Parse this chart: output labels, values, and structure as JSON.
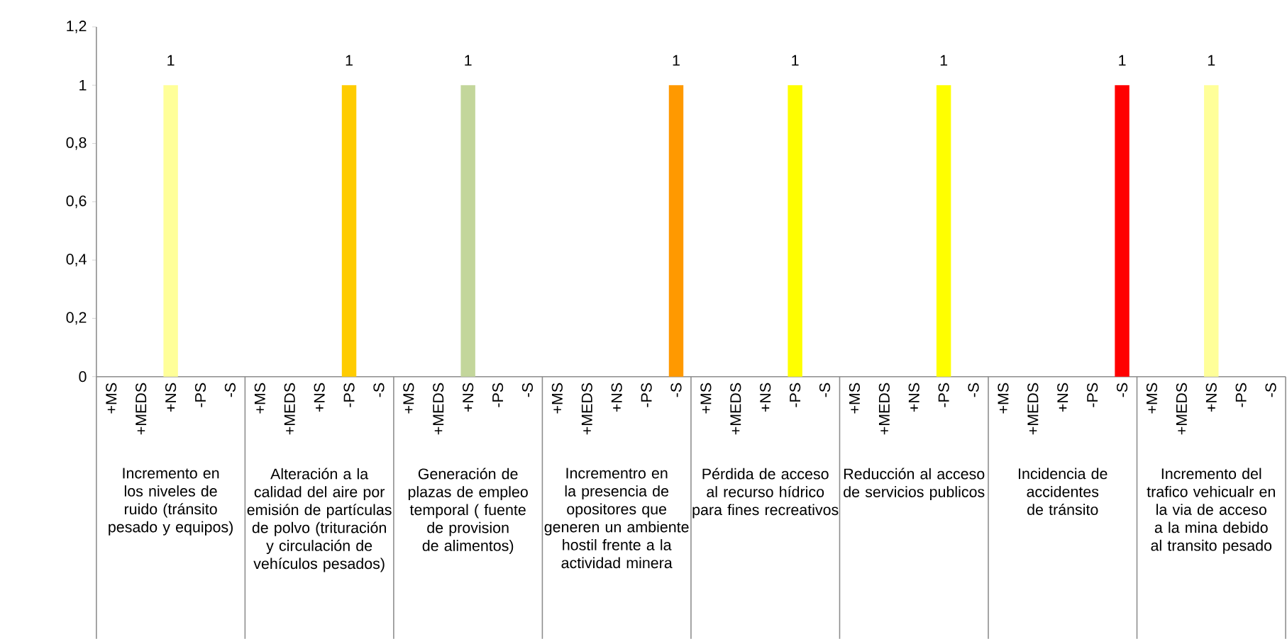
{
  "chart_data": {
    "type": "bar",
    "categories": [
      "+MS",
      "+MEDS",
      "+NS",
      "-PS",
      "-S",
      "+MS",
      "+MEDS",
      "+NS",
      "-PS",
      "-S",
      "+MS",
      "+MEDS",
      "+NS",
      "-PS",
      "-S",
      "+MS",
      "+MEDS",
      "+NS",
      "-PS",
      "-S",
      "+MS",
      "+MEDS",
      "+NS",
      "-PS",
      "-S",
      "+MS",
      "+MEDS",
      "+NS",
      "-PS",
      "-S",
      "+MS",
      "+MEDS",
      "+NS",
      "-PS",
      "-S",
      "+MS",
      "+MEDS",
      "+NS",
      "-PS",
      "-S"
    ],
    "values": [
      null,
      null,
      1,
      null,
      null,
      null,
      null,
      null,
      1,
      null,
      null,
      null,
      1,
      null,
      null,
      null,
      null,
      null,
      null,
      1,
      null,
      null,
      null,
      1,
      null,
      null,
      null,
      null,
      1,
      null,
      null,
      null,
      null,
      null,
      1,
      null,
      null,
      1,
      null,
      null
    ],
    "colors": [
      null,
      null,
      "#ffff99",
      null,
      null,
      null,
      null,
      null,
      "#ffcc00",
      null,
      null,
      null,
      "#c3d69b",
      null,
      null,
      null,
      null,
      null,
      null,
      "#ff9900",
      null,
      null,
      null,
      "#ffff00",
      null,
      null,
      null,
      null,
      "#ffff00",
      null,
      null,
      null,
      null,
      null,
      "#ff0000",
      null,
      null,
      "#ffff99",
      null,
      null
    ],
    "ylim": [
      0,
      1.2
    ],
    "yticks": [
      0,
      {
        "value": 0.2,
        "label": "0,2"
      },
      {
        "value": 0.4,
        "label": "0,4"
      },
      {
        "value": 0.6,
        "label": "0,6"
      },
      {
        "value": 0.8,
        "label": "0,8"
      },
      1,
      {
        "value": 1.2,
        "label": "1,2"
      }
    ],
    "data_labels": true,
    "annotations": [
      "Incremento en los niveles de ruido (tránsito pesado y equipos)",
      "Alteración a la calidad del aire por emisión de partículas de polvo (trituración y circulación de vehículos pesados)",
      "Generación de plazas de empleo temporal ( fuente de provision de alimentos)",
      "Incrementro en la presencia de opositores que generen un ambiente  hostil frente a la actividad minera",
      "Pérdida de acceso al recurso hídrico para fines recreativos",
      "Reducción al acceso de servicios publicos",
      "Incidencia de accidentes de tránsito",
      "Incremento del trafico vehicualr en la via de acceso a la mina debido al transito pesado"
    ]
  }
}
